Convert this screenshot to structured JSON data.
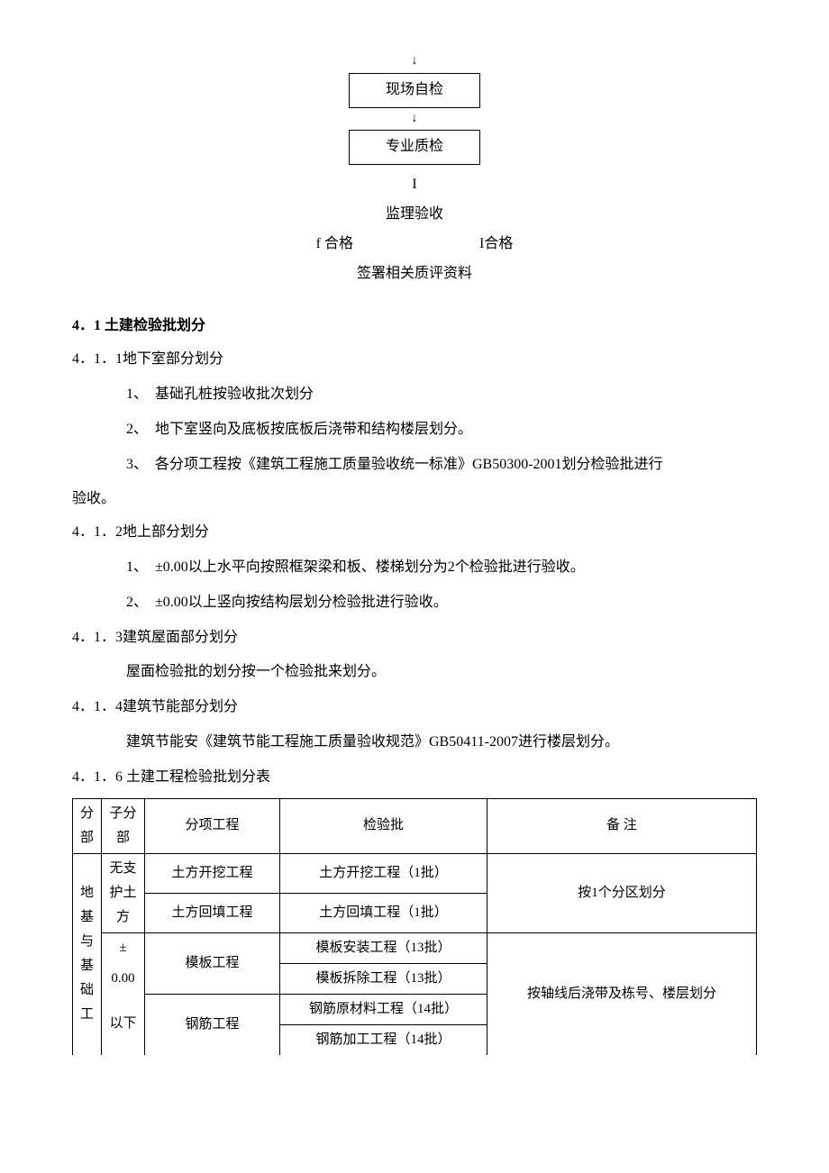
{
  "flow": {
    "box1": "现场自检",
    "box2": "专业质检",
    "step3_marker": "I",
    "step3": "监理验收",
    "left_label": "f 合格",
    "right_label": "I合格",
    "step4": "签署相关质评资料",
    "arrow": "↓"
  },
  "section41": {
    "title": "4．1 土建检验批划分",
    "s411": "4．1．1地下室部分划分",
    "s411_items": [
      "1、　基础孔桩按验收批次划分",
      "2、　地下室竖向及底板按底板后浇带和结构楼层划分。",
      "3、　各分项工程按《建筑工程施工质量验收统一标准》GB50300-2001划分检验批进行"
    ],
    "s411_tail": "验收。",
    "s412": "4．1．2地上部分划分",
    "s412_items": [
      "1、　±0.00以上水平向按照框架梁和板、楼梯划分为2个检验批进行验收。",
      "2、　±0.00以上竖向按结构层划分检验批进行验收。"
    ],
    "s413": "4．1．3建筑屋面部分划分",
    "s413_text": "屋面检验批的划分按一个检验批来划分。",
    "s414": "4．1．4建筑节能部分划分",
    "s414_text": "建筑节能安《建筑节能工程施工质量验收规范》GB50411-2007进行楼层划分。",
    "s416": "4．1．6 土建工程检验批划分表"
  },
  "table": {
    "headers": {
      "fb": "分部",
      "zfb": "子分部",
      "fx": "分项工程",
      "jyp": "检验批",
      "bz": "备 注"
    },
    "col1": "地基与基础工",
    "zfb1": "无支护土方",
    "zfb2_a": "±",
    "zfb2_b": "0.00",
    "zfb2_c": "以下",
    "r1_fx": "土方开挖工程",
    "r1_jyp": "土方开挖工程（1批）",
    "r2_fx": "土方回填工程",
    "r2_jyp": "土方回填工程（1批）",
    "bz1": "按1个分区划分",
    "r3_fx": "模板工程",
    "r3_jyp": "模板安装工程（13批）",
    "r4_jyp": "模板拆除工程（13批）",
    "r5_fx": "钢筋工程",
    "r5_jyp": "钢筋原材料工程（14批）",
    "r6_jyp": "钢筋加工工程（14批）",
    "bz2": "按轴线后浇带及栋号、楼层划分"
  }
}
